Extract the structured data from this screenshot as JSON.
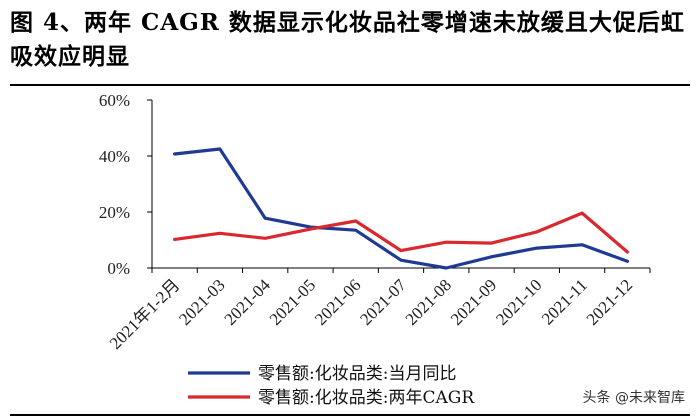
{
  "header": {
    "title": "图 4、两年 CAGR 数据显示化妆品社零增速未放缓且大促后虹吸效应明显"
  },
  "watermark": "头条 @未来智库",
  "chart_data": {
    "type": "line",
    "title": "",
    "xlabel": "",
    "ylabel": "",
    "categories": [
      "2021年1-2月",
      "2021-03",
      "2021-04",
      "2021-05",
      "2021-06",
      "2021-07",
      "2021-08",
      "2021-09",
      "2021-10",
      "2021-11",
      "2021-12"
    ],
    "yticks": [
      "0%",
      "20%",
      "40%",
      "60%"
    ],
    "ylim": [
      0,
      60
    ],
    "grid": false,
    "legend_position": "bottom",
    "series": [
      {
        "name": "零售额:化妆品类:当月同比",
        "color": "#1f3a93",
        "values": [
          40.7,
          42.5,
          17.8,
          14.6,
          13.5,
          2.8,
          0.0,
          4.0,
          7.1,
          8.3,
          2.4
        ]
      },
      {
        "name": "零售额:化妆品类:两年CAGR",
        "color": "#d9282f",
        "values": [
          10.2,
          12.4,
          10.6,
          13.9,
          16.8,
          6.2,
          9.2,
          8.9,
          12.9,
          19.6,
          5.7
        ]
      }
    ]
  }
}
